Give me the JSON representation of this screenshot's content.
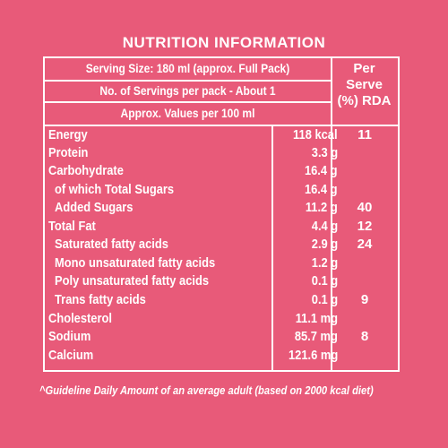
{
  "title": "NUTRITION INFORMATION",
  "header": {
    "serving_size": "Serving Size: 180 ml (approx. Full Pack)",
    "servings_per_pack": "No. of Servings per pack - About 1",
    "approx_values": "Approx. Values per 100 ml",
    "rda_line1": "Per",
    "rda_line2": "Serve",
    "rda_line3": "(%) RDA"
  },
  "rows": [
    {
      "name": "Energy",
      "value": "118 kcal",
      "rda": "11"
    },
    {
      "name": "Protein",
      "value": "3.3 g",
      "rda": ""
    },
    {
      "name": "Carbohydrate",
      "value": "16.4 g",
      "rda": ""
    },
    {
      "name": "of which Total Sugars",
      "value": "16.4 g",
      "rda": ""
    },
    {
      "name": "Added Sugars",
      "value": "11.2 g",
      "rda": "40"
    },
    {
      "name": "Total Fat",
      "value": "4.4 g",
      "rda": "12"
    },
    {
      "name": "Saturated fatty acids",
      "value": "2.9 g",
      "rda": "24"
    },
    {
      "name": "Mono unsaturated fatty acids",
      "value": "1.2 g",
      "rda": ""
    },
    {
      "name": "Poly unsaturated fatty acids",
      "value": "0.1 g",
      "rda": ""
    },
    {
      "name": "Trans fatty acids",
      "value": "0.1 g",
      "rda": "9"
    },
    {
      "name": "Cholesterol",
      "value": "11.1 mg",
      "rda": ""
    },
    {
      "name": "Sodium",
      "value": "85.7 mg",
      "rda": "8"
    },
    {
      "name": "Calcium",
      "value": "121.6 mg",
      "rda": ""
    }
  ],
  "footnote": "^Guideline Daily Amount of an average adult (based on 2000 kcal diet)",
  "colors": {
    "background": "#e85a79",
    "text": "#ffffff"
  }
}
